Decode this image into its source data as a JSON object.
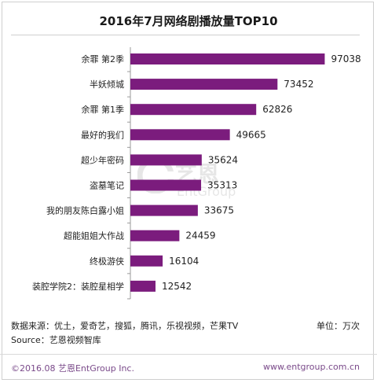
{
  "title": "2016年7月网络剧播放量TOP10",
  "colors": {
    "bar": "#7b1c7d",
    "text": "#222222",
    "footer_link": "#7a4a8a"
  },
  "chart_data": {
    "type": "bar",
    "orientation": "horizontal",
    "title": "2016年7月网络剧播放量TOP10",
    "categories": [
      "余罪 第2季",
      "半妖倾城",
      "余罪 第1季",
      "最好的我们",
      "超少年密码",
      "盗墓笔记",
      "我的朋友陈白露小姐",
      "超能姐姐大作战",
      "终极游侠",
      "装腔学院2：装腔星相学"
    ],
    "values": [
      97038,
      73452,
      62826,
      49665,
      35624,
      35313,
      33675,
      24459,
      16104,
      12542
    ],
    "unit": "万次",
    "xlim": [
      0,
      100000
    ],
    "grid": false,
    "legend": "none"
  },
  "footnotes": {
    "source_line": "数据来源：优土，爱奇艺，搜狐，腾讯，乐视视频，芒果TV",
    "unit_line": "单位：万次",
    "source_line2": "Source：艺恩视频智库"
  },
  "footer": {
    "copyright": "©2016.08 艺恩EntGroup Inc.",
    "website": "www.entgroup.com.cn"
  },
  "watermark": {
    "cn": "艺恩",
    "en": "EntGroup"
  }
}
